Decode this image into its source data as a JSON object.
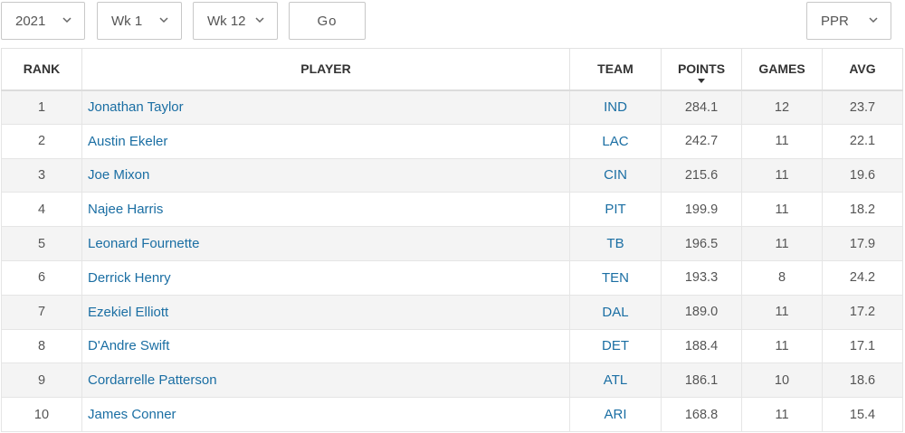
{
  "filters": {
    "season": "2021",
    "start_week": "Wk 1",
    "end_week": "Wk 12",
    "go_label": "Go",
    "scoring": "PPR"
  },
  "columns": {
    "rank": "RANK",
    "player": "PLAYER",
    "team": "TEAM",
    "points": "POINTS",
    "games": "GAMES",
    "avg": "AVG"
  },
  "rows": [
    {
      "rank": "1",
      "player": "Jonathan Taylor",
      "team": "IND",
      "points": "284.1",
      "games": "12",
      "avg": "23.7"
    },
    {
      "rank": "2",
      "player": "Austin Ekeler",
      "team": "LAC",
      "points": "242.7",
      "games": "11",
      "avg": "22.1"
    },
    {
      "rank": "3",
      "player": "Joe Mixon",
      "team": "CIN",
      "points": "215.6",
      "games": "11",
      "avg": "19.6"
    },
    {
      "rank": "4",
      "player": "Najee Harris",
      "team": "PIT",
      "points": "199.9",
      "games": "11",
      "avg": "18.2"
    },
    {
      "rank": "5",
      "player": "Leonard Fournette",
      "team": "TB",
      "points": "196.5",
      "games": "11",
      "avg": "17.9"
    },
    {
      "rank": "6",
      "player": "Derrick Henry",
      "team": "TEN",
      "points": "193.3",
      "games": "8",
      "avg": "24.2"
    },
    {
      "rank": "7",
      "player": "Ezekiel Elliott",
      "team": "DAL",
      "points": "189.0",
      "games": "11",
      "avg": "17.2"
    },
    {
      "rank": "8",
      "player": "D'Andre Swift",
      "team": "DET",
      "points": "188.4",
      "games": "11",
      "avg": "17.1"
    },
    {
      "rank": "9",
      "player": "Cordarrelle Patterson",
      "team": "ATL",
      "points": "186.1",
      "games": "10",
      "avg": "18.6"
    },
    {
      "rank": "10",
      "player": "James Conner",
      "team": "ARI",
      "points": "168.8",
      "games": "11",
      "avg": "15.4"
    }
  ],
  "icons": {
    "select_chevron": "chevron-down-icon",
    "sort_indicator": "sort-desc-icon"
  },
  "colors": {
    "link": "#1a6ea3",
    "row_alt": "#f4f4f4",
    "border": "#e2e2e2"
  }
}
